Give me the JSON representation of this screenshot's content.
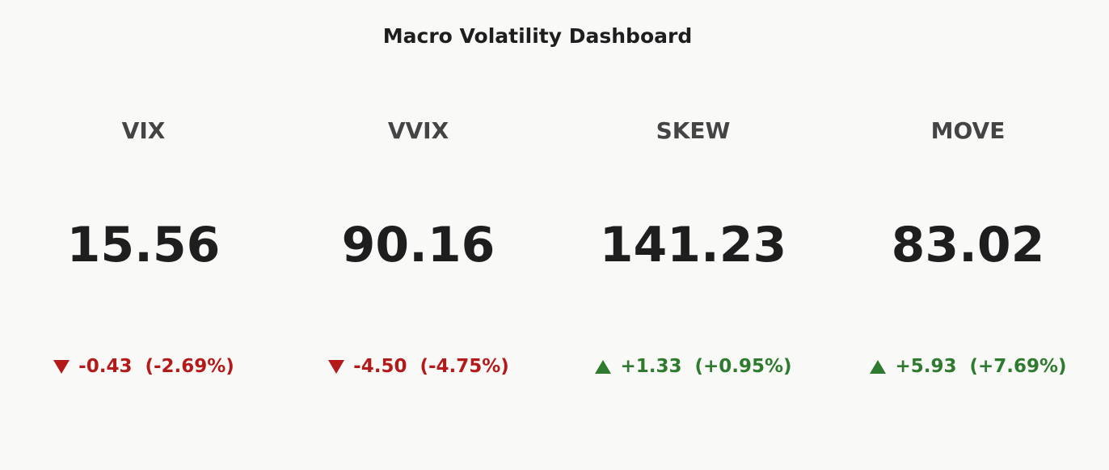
{
  "header": {
    "title": "Macro Volatility Dashboard"
  },
  "indicators": [
    {
      "label": "VIX",
      "value": "15.56",
      "change": "-0.43",
      "change_pct": "(-2.69%)"
    },
    {
      "label": "VVIX",
      "value": "90.16",
      "change": "-4.50",
      "change_pct": "(-4.75%)"
    },
    {
      "label": "SKEW",
      "value": "141.23",
      "change": "+1.33",
      "change_pct": "(+0.95%)"
    },
    {
      "label": "MOVE",
      "value": "83.02",
      "change": "+5.93",
      "change_pct": "(+7.69%)"
    }
  ]
}
